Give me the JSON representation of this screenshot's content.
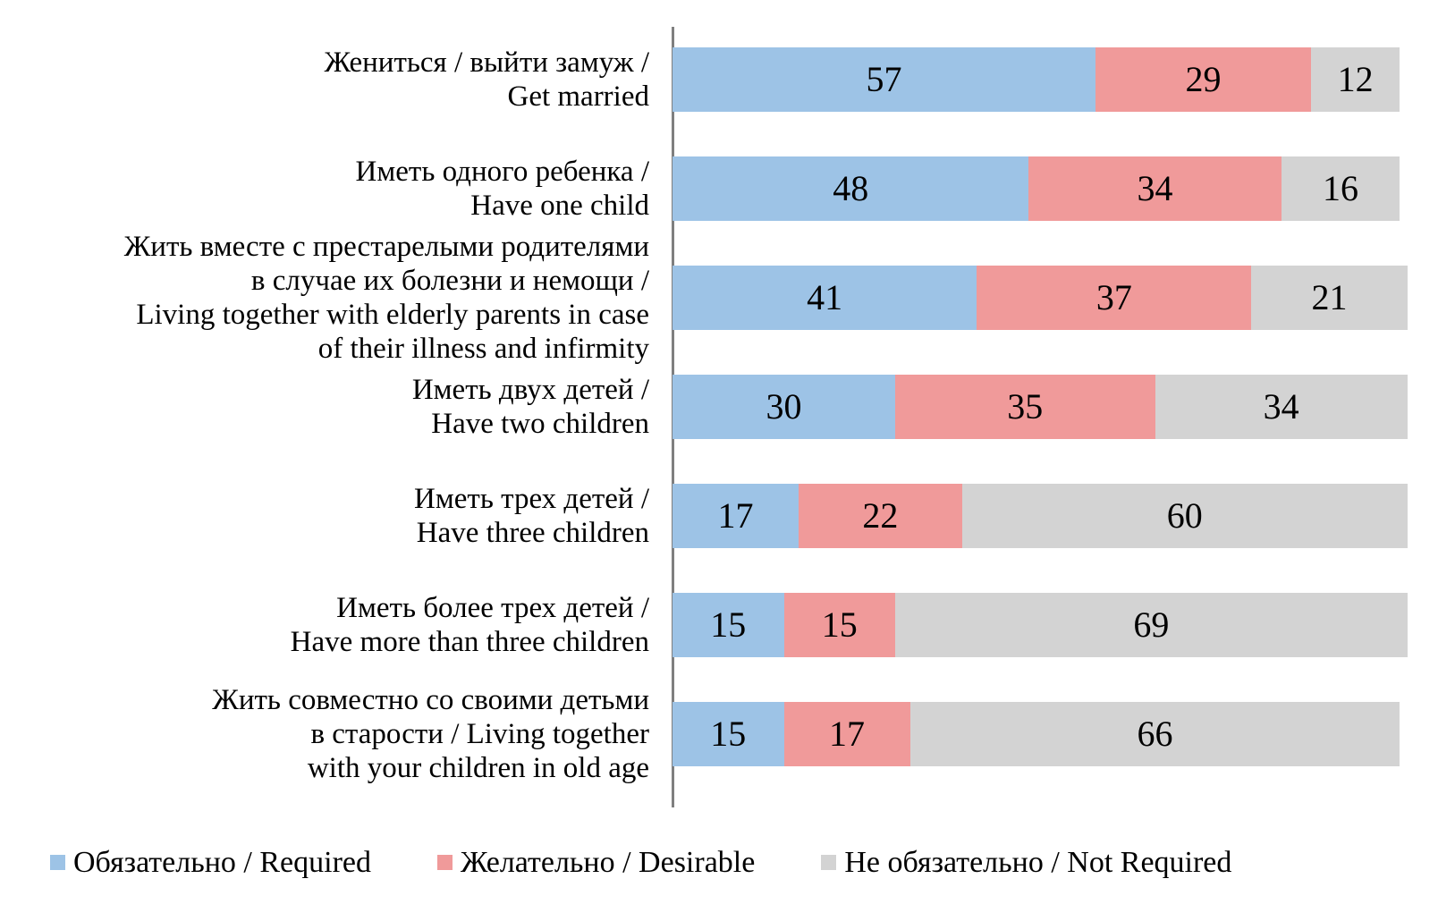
{
  "chart_data": {
    "type": "bar",
    "orientation": "horizontal",
    "stacked": true,
    "title": "",
    "xlabel": "",
    "ylabel": "",
    "xlim": [
      0,
      100
    ],
    "grid": false,
    "legend_position": "bottom",
    "value_labels": "inside-center",
    "categories": [
      "Жениться / выйти замуж /\nGet married",
      "Иметь одного ребенка /\nHave one child",
      "Жить вместе с престарелыми родителями\nв случае их болезни и немощи /\nLiving together with elderly parents in case\nof their illness and infirmity",
      "Иметь двух детей /\nHave two children",
      "Иметь трех детей /\nHave three children",
      "Иметь более трех детей /\nHave more than three children",
      "Жить совместно со своими детьми\nв старости / Living together\nwith your children in old age"
    ],
    "series": [
      {
        "name": "Обязательно / Required",
        "color": "#9DC3E6",
        "values": [
          57,
          48,
          41,
          30,
          17,
          15,
          15
        ]
      },
      {
        "name": "Желательно / Desirable",
        "color": "#F09A9A",
        "values": [
          29,
          34,
          37,
          35,
          22,
          15,
          17
        ]
      },
      {
        "name": "Не обязательно / Not Required",
        "color": "#D3D3D3",
        "values": [
          12,
          16,
          21,
          34,
          60,
          69,
          66
        ]
      }
    ]
  },
  "colors": {
    "axis_line": "#7F7F7F",
    "text": "#000000",
    "background": "#FFFFFF"
  }
}
